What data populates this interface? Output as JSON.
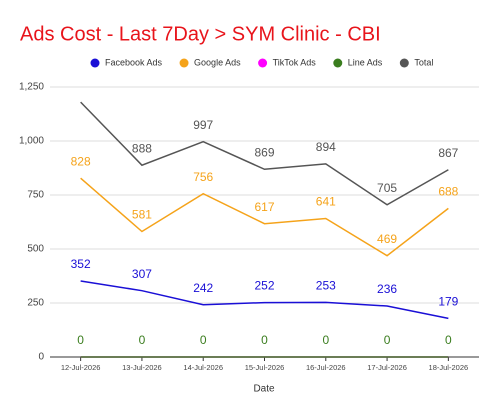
{
  "chart_data": {
    "type": "line",
    "title": "Ads Cost - Last 7Day > SYM Clinic - CBI",
    "x_label": "Date",
    "categories": [
      "12-Jul-2026",
      "13-Jul-2026",
      "14-Jul-2026",
      "15-Jul-2026",
      "16-Jul-2026",
      "17-Jul-2026",
      "18-Jul-2026"
    ],
    "ylim": [
      0,
      1250
    ],
    "yticks": [
      0,
      250,
      500,
      750,
      {
        "value": 1000,
        "label": "1,000"
      },
      {
        "value": 1250,
        "label": "1,250"
      }
    ],
    "grid": true,
    "legend": "top",
    "series": [
      {
        "name": "Facebook Ads",
        "color": "#1a0fd6",
        "data_labels": true,
        "values": [
          352,
          307,
          242,
          252,
          253,
          236,
          179
        ]
      },
      {
        "name": "Google Ads",
        "color": "#f5a31a",
        "data_labels": true,
        "values": [
          828,
          581,
          756,
          617,
          641,
          469,
          688
        ]
      },
      {
        "name": "TikTok Ads",
        "color": "#ff00ff",
        "data_labels": false,
        "values": [
          0,
          0,
          0,
          0,
          0,
          0,
          0
        ]
      },
      {
        "name": "Line Ads",
        "color": "#3a7d1e",
        "data_labels": true,
        "values": [
          0,
          0,
          0,
          0,
          0,
          0,
          0
        ]
      },
      {
        "name": "Total",
        "color": "#555555",
        "data_labels": true,
        "values": [
          1180,
          888,
          997,
          869,
          894,
          705,
          867
        ],
        "value_labels": [
          null,
          "888",
          "997",
          "869",
          "894",
          "705",
          "867"
        ]
      }
    ]
  }
}
